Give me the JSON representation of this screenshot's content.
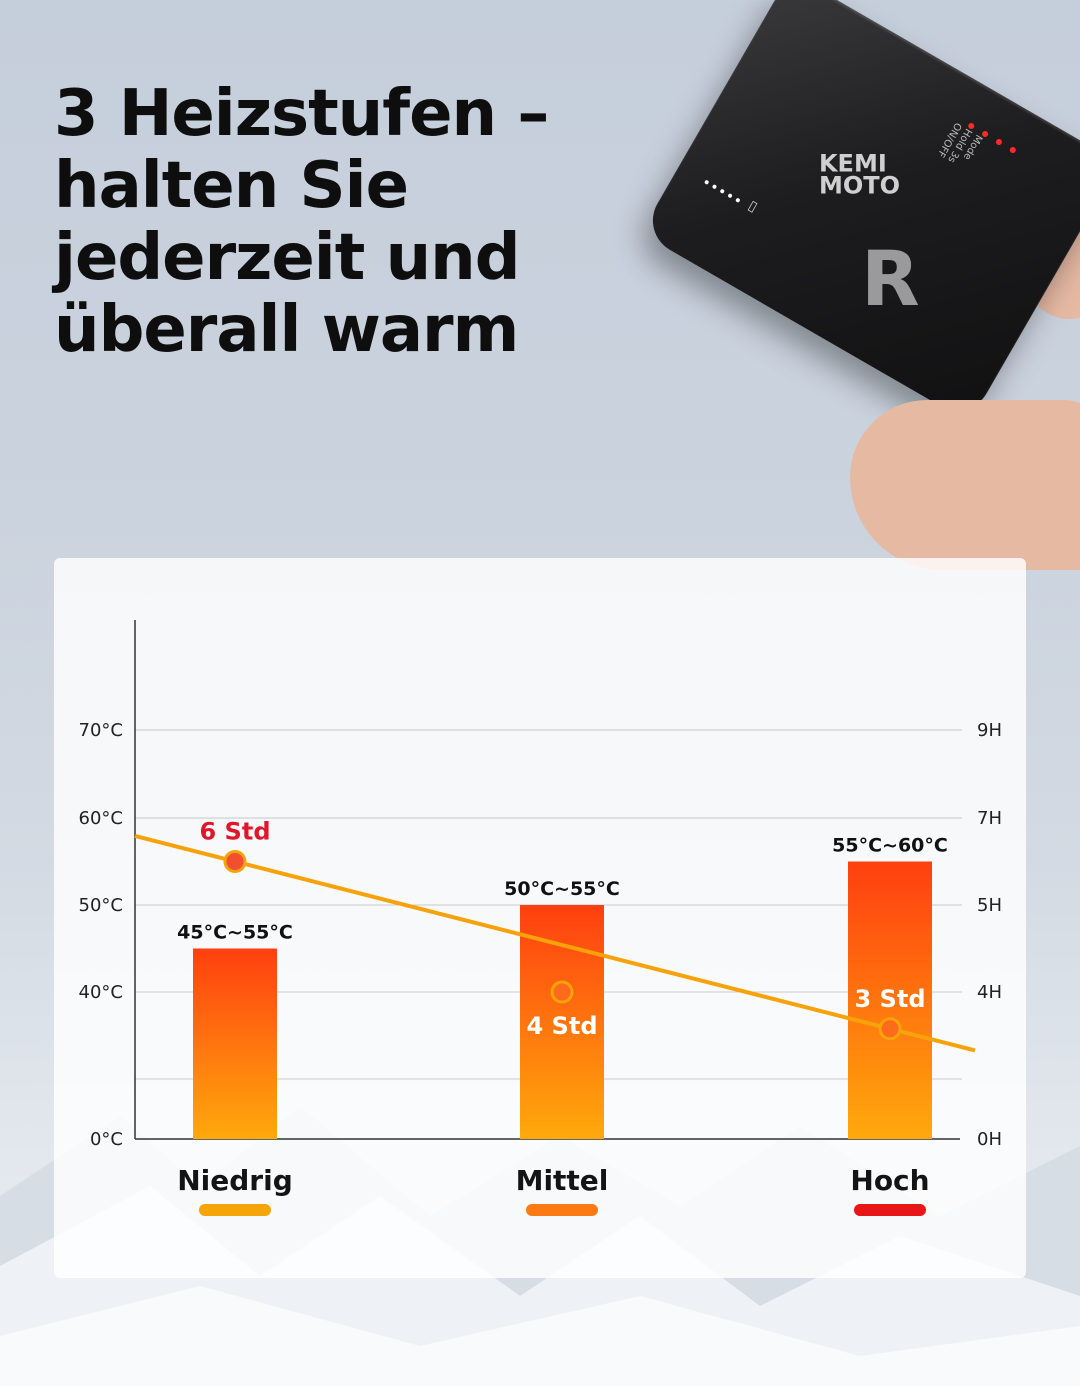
{
  "headline": {
    "lines": [
      "3 Heizstufen –",
      "halten Sie",
      "jederzeit und",
      "überall warm"
    ]
  },
  "device": {
    "brand_line1": "KEMI",
    "brand_line2": "MOTO",
    "emblem": "R",
    "mode_text": "Mode",
    "hold_text": "Hold 3s",
    "onoff_text": "ON/OFF",
    "icon": "battery-icon"
  },
  "chart_data": {
    "type": "bar",
    "categories": [
      "Niedrig",
      "Mittel",
      "Hoch"
    ],
    "category_underline_colors": [
      "#f5a40a",
      "#fb7a14",
      "#e81616"
    ],
    "bar_gradient": {
      "top": "#ff3f10",
      "bottom": "#ffa90c"
    },
    "line_color": "#f7a20a",
    "series": [
      {
        "name": "",
        "axis": "left",
        "values": [
          [
            45,
            55
          ],
          [
            50,
            55
          ],
          [
            55,
            60
          ]
        ],
        "labels": [
          "45°C~55°C",
          "50°C~55°C",
          "55°C~60°C"
        ]
      },
      {
        "name": "",
        "axis": "right",
        "values": [
          6,
          4,
          3
        ],
        "labels": [
          "6 Std",
          "4 Std",
          "3 Std"
        ],
        "label_colors": [
          "#e0162a",
          "#ffffff",
          "#ffffff"
        ]
      }
    ],
    "y_left": {
      "ticks": [
        0,
        40,
        50,
        60,
        70
      ],
      "tick_labels": [
        "0°C",
        "40°C",
        "50°C",
        "60°C",
        "70°C"
      ]
    },
    "y_right": {
      "ticks": [
        0,
        4,
        5,
        7,
        9
      ],
      "tick_labels": [
        "0H",
        "4H",
        "5H",
        "7H",
        "9H"
      ]
    },
    "grid": true,
    "legend": "none"
  }
}
